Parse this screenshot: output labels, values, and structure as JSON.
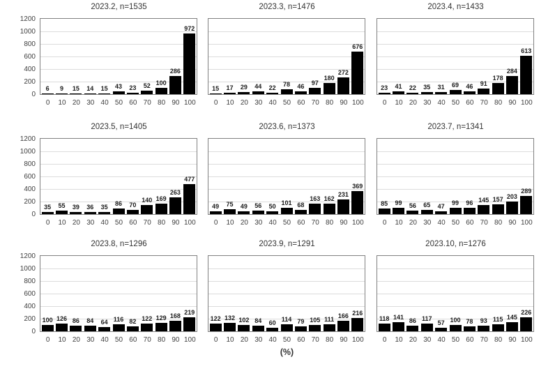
{
  "figure": {
    "xlabel": "(%)",
    "background_color": "#ffffff",
    "bar_color": "#000000",
    "grid_color": "#dcdcdc",
    "border_color": "#808080",
    "title_color": "#333333",
    "tick_color": "#404040",
    "ylim": [
      0,
      1200
    ],
    "yticks": [
      1200,
      1000,
      800,
      600,
      400,
      200,
      0
    ],
    "xticks": [
      "0",
      "10",
      "20",
      "30",
      "40",
      "50",
      "60",
      "70",
      "80",
      "90",
      "100"
    ]
  },
  "chart_data": [
    {
      "type": "bar",
      "title": "2023.2, n=1535",
      "n": 1535,
      "ylim": [
        0,
        1200
      ],
      "categories": [
        0,
        10,
        20,
        30,
        40,
        50,
        60,
        70,
        80,
        90,
        100
      ],
      "values": [
        6,
        9,
        15,
        14,
        15,
        43,
        23,
        52,
        100,
        286,
        972
      ]
    },
    {
      "type": "bar",
      "title": "2023.3, n=1476",
      "n": 1476,
      "ylim": [
        0,
        1200
      ],
      "categories": [
        0,
        10,
        20,
        30,
        40,
        50,
        60,
        70,
        80,
        90,
        100
      ],
      "values": [
        15,
        17,
        29,
        44,
        22,
        78,
        46,
        97,
        180,
        272,
        676
      ]
    },
    {
      "type": "bar",
      "title": "2023.4, n=1433",
      "n": 1433,
      "ylim": [
        0,
        1200
      ],
      "categories": [
        0,
        10,
        20,
        30,
        40,
        50,
        60,
        70,
        80,
        90,
        100
      ],
      "values": [
        23,
        41,
        22,
        35,
        31,
        69,
        46,
        91,
        178,
        284,
        613
      ]
    },
    {
      "type": "bar",
      "title": "2023.5, n=1405",
      "n": 1405,
      "ylim": [
        0,
        1200
      ],
      "categories": [
        0,
        10,
        20,
        30,
        40,
        50,
        60,
        70,
        80,
        90,
        100
      ],
      "values": [
        35,
        55,
        39,
        36,
        35,
        86,
        70,
        140,
        169,
        263,
        477
      ]
    },
    {
      "type": "bar",
      "title": "2023.6, n=1373",
      "n": 1373,
      "ylim": [
        0,
        1200
      ],
      "categories": [
        0,
        10,
        20,
        30,
        40,
        50,
        60,
        70,
        80,
        90,
        100
      ],
      "values": [
        49,
        75,
        49,
        56,
        50,
        101,
        68,
        163,
        162,
        231,
        369
      ]
    },
    {
      "type": "bar",
      "title": "2023.7, n=1341",
      "n": 1341,
      "ylim": [
        0,
        1200
      ],
      "categories": [
        0,
        10,
        20,
        30,
        40,
        50,
        60,
        70,
        80,
        90,
        100
      ],
      "values": [
        85,
        99,
        56,
        65,
        47,
        99,
        96,
        145,
        157,
        203,
        289
      ]
    },
    {
      "type": "bar",
      "title": "2023.8, n=1296",
      "n": 1296,
      "ylim": [
        0,
        1200
      ],
      "categories": [
        0,
        10,
        20,
        30,
        40,
        50,
        60,
        70,
        80,
        90,
        100
      ],
      "values": [
        100,
        126,
        86,
        84,
        64,
        116,
        82,
        122,
        129,
        168,
        219
      ]
    },
    {
      "type": "bar",
      "title": "2023.9, n=1291",
      "n": 1291,
      "ylim": [
        0,
        1200
      ],
      "categories": [
        0,
        10,
        20,
        30,
        40,
        50,
        60,
        70,
        80,
        90,
        100
      ],
      "values": [
        122,
        132,
        102,
        84,
        60,
        114,
        79,
        105,
        111,
        166,
        216
      ]
    },
    {
      "type": "bar",
      "title": "2023.10, n=1276",
      "n": 1276,
      "ylim": [
        0,
        1200
      ],
      "categories": [
        0,
        10,
        20,
        30,
        40,
        50,
        60,
        70,
        80,
        90,
        100
      ],
      "values": [
        118,
        141,
        86,
        117,
        57,
        100,
        78,
        93,
        115,
        145,
        226
      ]
    }
  ]
}
